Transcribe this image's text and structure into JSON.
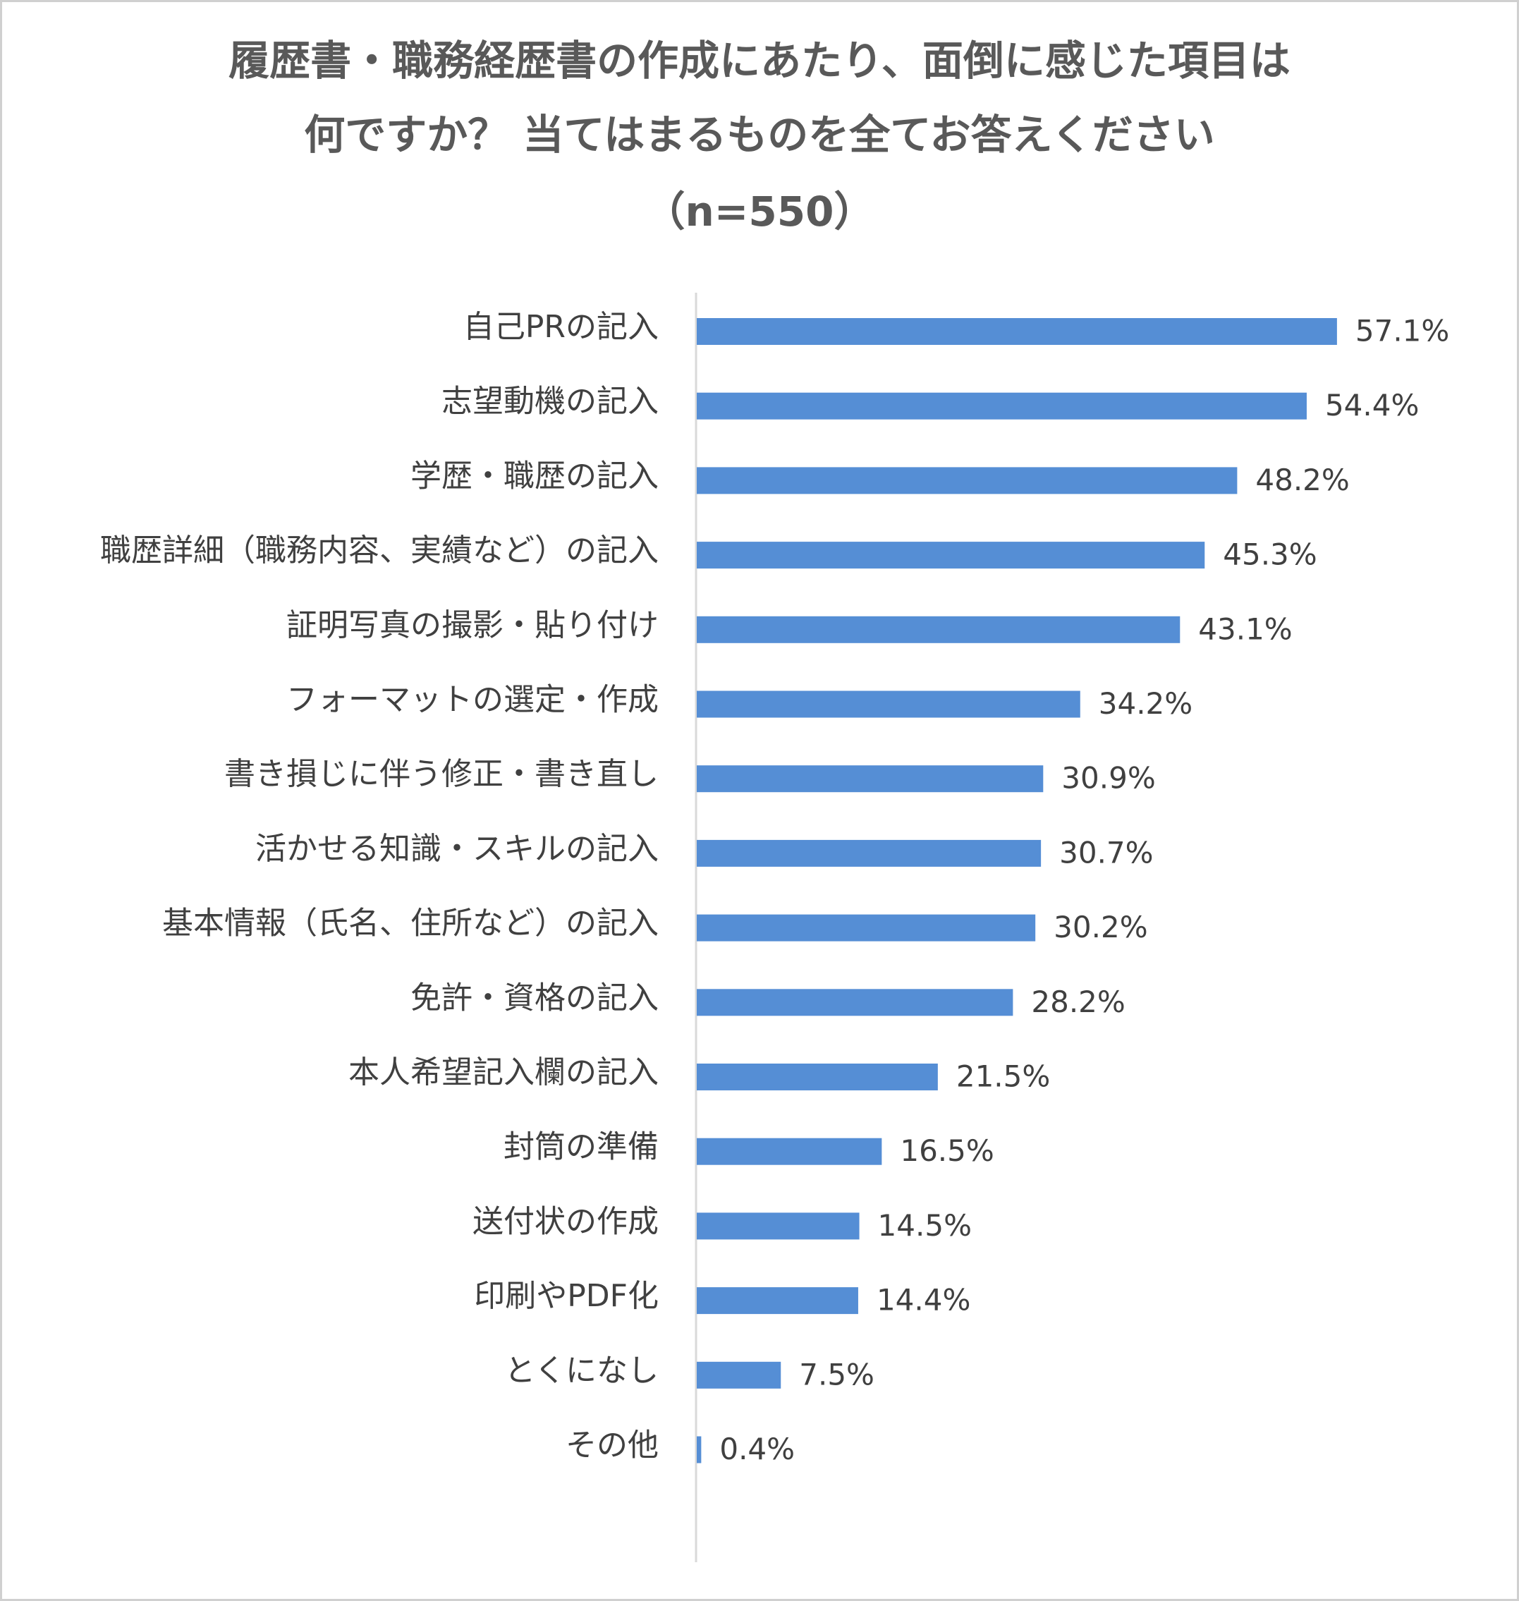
{
  "chart_data": {
    "type": "bar",
    "orientation": "horizontal",
    "title": [
      "履歴書・職務経歴書の作成にあたり、面倒に感じた項目は",
      "何ですか？ 当てはまるものを全てお答えください",
      "（n=550）"
    ],
    "categories": [
      "自己PRの記入",
      "志望動機の記入",
      "学歴・職歴の記入",
      "職歴詳細（職務内容、実績など）の記入",
      "証明写真の撮影・貼り付け",
      "フォーマットの選定・作成",
      "書き損じに伴う修正・書き直し",
      "活かせる知識・スキルの記入",
      "基本情報（氏名、住所など）の記入",
      "免許・資格の記入",
      "本人希望記入欄の記入",
      "封筒の準備",
      "送付状の作成",
      "印刷やPDF化",
      "とくになし",
      "その他"
    ],
    "values": [
      57.1,
      54.4,
      48.2,
      45.3,
      43.1,
      34.2,
      30.9,
      30.7,
      30.2,
      28.2,
      21.5,
      16.5,
      14.5,
      14.4,
      7.5,
      0.4
    ],
    "value_labels": [
      "57.1%",
      "54.4%",
      "48.2%",
      "45.3%",
      "43.1%",
      "34.2%",
      "30.9%",
      "30.7%",
      "30.2%",
      "28.2%",
      "21.5%",
      "16.5%",
      "14.5%",
      "14.4%",
      "7.5%",
      "0.4%"
    ],
    "color": "#558ed5"
  }
}
